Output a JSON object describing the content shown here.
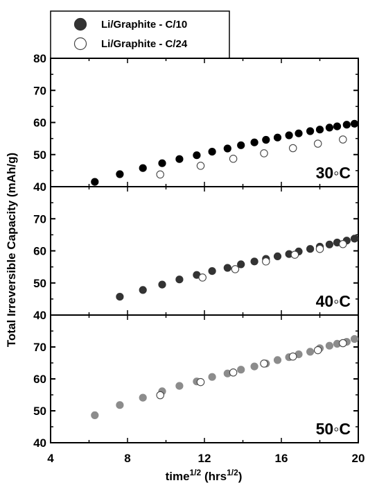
{
  "chart_data": {
    "type": "scatter",
    "xlabel_main": "time",
    "xlabel_sup": "1/2",
    "xlabel_unit_open": " (hrs",
    "xlabel_unit_sup": "1/2",
    "xlabel_unit_close": ")",
    "ylabel": "Total Irreversible Capacity (mAh/g)",
    "xlim": [
      4,
      20
    ],
    "xticks": [
      "4",
      "8",
      "12",
      "16",
      "20"
    ],
    "ylim": [
      40,
      80
    ],
    "legend": {
      "position": "top-left",
      "entries": [
        {
          "name": "Li/Graphite - C/10",
          "marker": "filled"
        },
        {
          "name": "Li/Graphite - C/24",
          "marker": "open"
        }
      ]
    },
    "panels": [
      {
        "label": "30◦C",
        "ylim": [
          40,
          80
        ],
        "yticks": [
          "40",
          "50",
          "60",
          "70",
          "80"
        ],
        "fill_color": "#000000",
        "series": [
          {
            "name": "Li/Graphite - C/10",
            "x": [
              6.3,
              7.6,
              8.8,
              9.8,
              10.7,
              11.6,
              12.4,
              13.2,
              13.9,
              14.6,
              15.2,
              15.8,
              16.4,
              16.9,
              17.5,
              18.0,
              18.5,
              18.9,
              19.4,
              19.8
            ],
            "y": [
              41.5,
              43.9,
              45.8,
              47.3,
              48.6,
              49.8,
              50.9,
              51.9,
              52.9,
              53.8,
              54.6,
              55.3,
              56.0,
              56.6,
              57.3,
              57.8,
              58.4,
              58.8,
              59.3,
              59.6
            ]
          },
          {
            "name": "Li/Graphite - C/24",
            "x": [
              9.7,
              11.8,
              13.5,
              15.1,
              16.6,
              17.9,
              19.2
            ],
            "y": [
              43.8,
              46.5,
              48.7,
              50.4,
              52.0,
              53.4,
              54.7
            ]
          }
        ]
      },
      {
        "label": "40◦C",
        "ylim": [
          40,
          80
        ],
        "yticks": [
          "40",
          "50",
          "60",
          "70"
        ],
        "fill_color": "#333333",
        "series": [
          {
            "name": "Li/Graphite - C/10",
            "x": [
              7.6,
              8.8,
              9.8,
              10.7,
              11.6,
              12.4,
              13.2,
              13.9,
              14.6,
              15.2,
              15.8,
              16.4,
              16.9,
              17.5,
              18.0,
              18.5,
              18.9,
              19.4,
              19.8
            ],
            "y": [
              45.7,
              47.8,
              49.5,
              51.1,
              52.5,
              53.7,
              54.7,
              55.8,
              56.7,
              57.5,
              58.3,
              59.0,
              59.8,
              60.6,
              61.3,
              62.0,
              62.6,
              63.2,
              63.8
            ]
          },
          {
            "name": "Li/Graphite - C/24",
            "x": [
              11.9,
              13.6,
              15.2,
              16.7,
              18.0,
              19.2
            ],
            "y": [
              51.7,
              54.3,
              56.7,
              58.8,
              60.6,
              62.1
            ]
          }
        ]
      },
      {
        "label": "50◦C",
        "ylim": [
          40,
          80
        ],
        "yticks": [
          "40",
          "50",
          "60",
          "70"
        ],
        "fill_color": "#8c8c8c",
        "series": [
          {
            "name": "Li/Graphite - C/10",
            "x": [
              6.3,
              7.6,
              8.8,
              9.8,
              10.7,
              11.6,
              12.4,
              13.2,
              13.9,
              14.6,
              15.2,
              15.8,
              16.4,
              16.9,
              17.5,
              18.0,
              18.5,
              18.9,
              19.4,
              19.8
            ],
            "y": [
              48.6,
              51.8,
              54.1,
              56.1,
              57.8,
              59.2,
              60.6,
              61.7,
              62.9,
              63.9,
              64.8,
              65.9,
              66.8,
              67.7,
              68.5,
              69.6,
              70.4,
              71.0,
              71.6,
              72.5
            ]
          },
          {
            "name": "Li/Graphite - C/24",
            "x": [
              9.7,
              11.8,
              13.5,
              15.1,
              16.6,
              17.9,
              19.2
            ],
            "y": [
              54.9,
              59.0,
              62.0,
              64.8,
              67.0,
              69.0,
              71.2
            ]
          }
        ]
      }
    ]
  }
}
